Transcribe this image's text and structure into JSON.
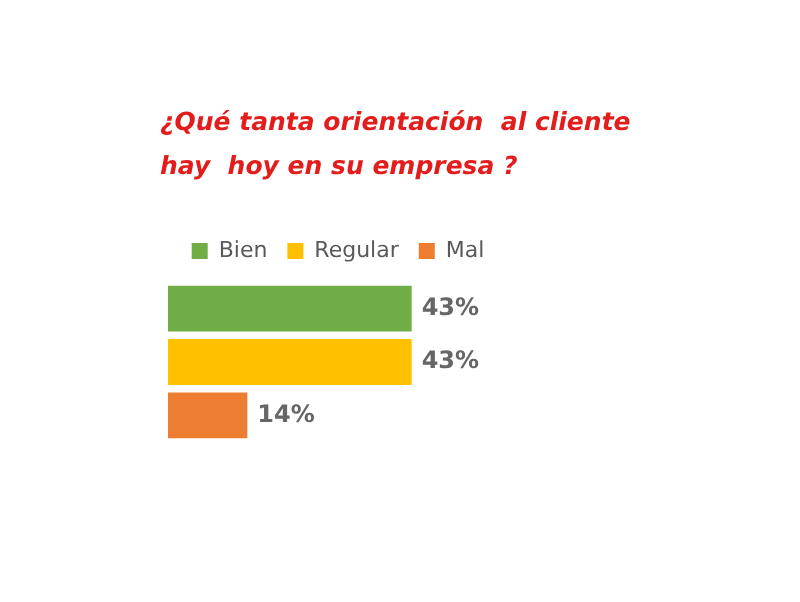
{
  "chart_data": {
    "type": "bar",
    "orientation": "horizontal",
    "title": "¿Qué tanta orientación  al cliente\nhay  hoy en su empresa ?",
    "categories": [
      null
    ],
    "series": [
      {
        "name": "Bien",
        "color": "#70ad47",
        "values": [
          43
        ],
        "value_labels": [
          "43%"
        ]
      },
      {
        "name": "Regular",
        "color": "#ffc000",
        "values": [
          43
        ],
        "value_labels": [
          "43%"
        ]
      },
      {
        "name": "Mal",
        "color": "#ed7d31",
        "values": [
          14
        ],
        "value_labels": [
          "14%"
        ]
      }
    ],
    "legend": "top"
  }
}
